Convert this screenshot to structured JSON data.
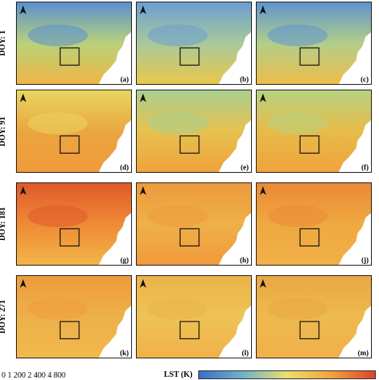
{
  "rows": [
    {
      "label": "DOY: 1",
      "panels": [
        "(a)",
        "(b)",
        "(c)"
      ]
    },
    {
      "label": "DOY: 91",
      "panels": [
        "(d)",
        "(e)",
        "(f)"
      ]
    },
    {
      "label": "DOY: 181",
      "panels": [
        "(g)",
        "(h)",
        "(j)"
      ]
    },
    {
      "label": "DOY: 271",
      "panels": [
        "(k)",
        "(l)",
        "(m)"
      ]
    }
  ],
  "scale_bar": "0     1 200 2 400          4 800",
  "colorbar": {
    "label": "LST (K)",
    "colors": [
      "#3a6fc8",
      "#6fb2c9",
      "#e9e06a",
      "#f3a23c",
      "#e0422a"
    ]
  },
  "north_label": "N"
}
